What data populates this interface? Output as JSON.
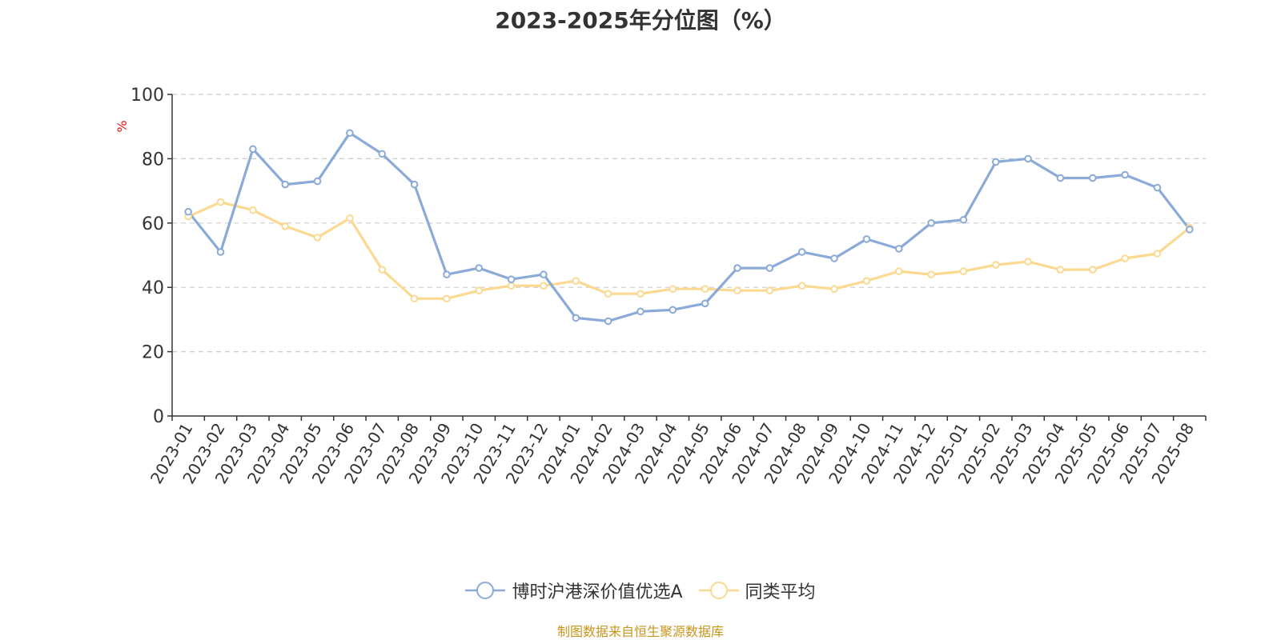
{
  "chart_data": {
    "type": "line",
    "title": "2023-2025年分位图（%）",
    "ylabel": "%",
    "ylim": [
      0,
      100
    ],
    "yticks": [
      0,
      20,
      40,
      60,
      80,
      100
    ],
    "grid": true,
    "legend_position": "bottom",
    "categories": [
      "2023-01",
      "2023-02",
      "2023-03",
      "2023-04",
      "2023-05",
      "2023-06",
      "2023-07",
      "2023-08",
      "2023-09",
      "2023-10",
      "2023-11",
      "2023-12",
      "2024-01",
      "2024-02",
      "2024-03",
      "2024-04",
      "2024-05",
      "2024-06",
      "2024-07",
      "2024-08",
      "2024-09",
      "2024-10",
      "2024-11",
      "2024-12",
      "2025-01",
      "2025-02",
      "2025-03",
      "2025-04",
      "2025-05",
      "2025-06",
      "2025-07",
      "2025-08"
    ],
    "series": [
      {
        "name": "博时沪港深价值优选A",
        "color": "#8aaad8",
        "values": [
          63.5,
          51,
          83,
          72,
          73,
          88,
          81.5,
          72,
          44,
          46,
          42.5,
          44,
          30.5,
          29.5,
          32.5,
          33,
          35,
          46,
          46,
          51,
          49,
          55,
          52,
          60,
          61,
          79,
          80,
          74,
          74,
          75,
          71,
          58
        ]
      },
      {
        "name": "同类平均",
        "color": "#fbd991",
        "values": [
          62,
          66.5,
          64,
          59,
          55.5,
          61.5,
          45.5,
          36.5,
          36.5,
          39,
          40.5,
          40.5,
          42,
          38,
          38,
          39.5,
          39.5,
          39,
          39,
          40.5,
          39.5,
          42,
          45,
          44,
          45,
          47,
          48,
          45.5,
          45.5,
          49,
          50.5,
          58.5
        ]
      }
    ]
  },
  "ylabel_color": "#ee1111",
  "source": {
    "text": "制图数据来自恒生聚源数据库",
    "color": "#c8951c"
  }
}
